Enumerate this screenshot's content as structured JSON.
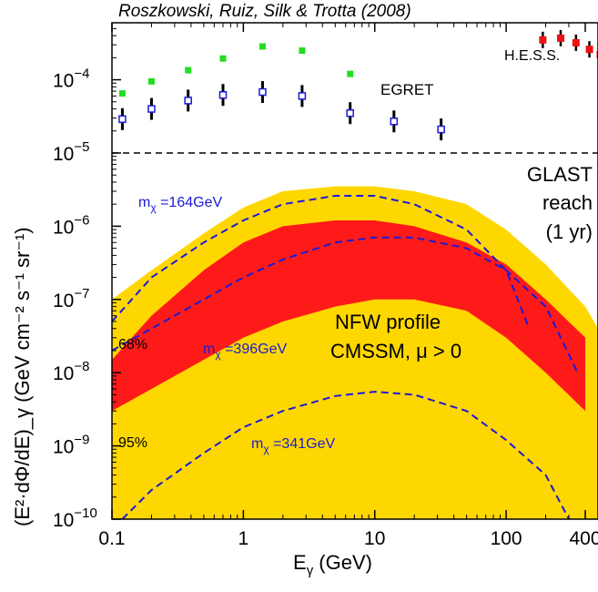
{
  "chart_data": {
    "type": "scatter",
    "title": "Roszkowski, Ruiz, Silk & Trotta (2008)",
    "xlabel": "E_γ (GeV)",
    "xlabel_main": "E",
    "xlabel_sub": "γ",
    "xlabel_rest": " (GeV)",
    "ylabel": "(E²·dΦ/dE)_γ (GeV cm⁻² s⁻¹ sr⁻¹)",
    "x_scale": "log",
    "y_scale": "log",
    "xlim": [
      0.1,
      500
    ],
    "ylim": [
      1e-10,
      0.0006
    ],
    "x_ticks": [
      {
        "value": 0.1,
        "label": "0.1"
      },
      {
        "value": 1,
        "label": "1"
      },
      {
        "value": 10,
        "label": "10"
      },
      {
        "value": 100,
        "label": "100"
      },
      {
        "value": 400,
        "label": "400"
      }
    ],
    "y_ticks": [
      {
        "value": 1e-10,
        "exp": "−10"
      },
      {
        "value": 1e-09,
        "exp": "−9"
      },
      {
        "value": 1e-08,
        "exp": "−8"
      },
      {
        "value": 1e-07,
        "exp": "−7"
      },
      {
        "value": 1e-06,
        "exp": "−6"
      },
      {
        "value": 1e-05,
        "exp": "−5"
      },
      {
        "value": 0.0001,
        "exp": "−4"
      }
    ],
    "y_tick_base": "10",
    "glast_reach": 1e-05,
    "series": [
      {
        "name": "EGRET",
        "marker": "green-square",
        "color": "#22dd22",
        "x": [
          0.12,
          0.2,
          0.38,
          0.7,
          1.4,
          2.8,
          6.5
        ],
        "y": [
          6.5e-05,
          9.5e-05,
          0.000135,
          0.000195,
          0.000285,
          0.00025,
          0.00012
        ]
      },
      {
        "marker": "blue-open-square",
        "color": "#1a1ad6",
        "x": [
          0.12,
          0.2,
          0.38,
          0.7,
          1.4,
          2.8,
          6.5,
          14,
          32
        ],
        "y": [
          2.9e-05,
          4e-05,
          5.2e-05,
          6.2e-05,
          6.8e-05,
          6e-05,
          3.5e-05,
          2.7e-05,
          2.1e-05
        ]
      },
      {
        "name": "H.E.S.S.",
        "marker": "red-square",
        "color": "#ee1111",
        "x": [
          190,
          260,
          340,
          430,
          520
        ],
        "y": [
          0.00035,
          0.00037,
          0.00032,
          0.00026,
          0.00022
        ]
      }
    ],
    "bands": [
      {
        "label": "95%",
        "color": "#ffd700",
        "x": [
          0.1,
          0.2,
          0.5,
          1,
          2,
          5,
          10,
          20,
          50,
          100,
          200,
          400,
          500
        ],
        "y_low": [
          1e-10,
          1e-10,
          1e-10,
          1e-10,
          1e-10,
          1e-10,
          1e-10,
          1e-10,
          1e-10,
          1e-10,
          1e-10,
          1e-10,
          1e-10
        ],
        "y_high": [
          1e-07,
          2.5e-07,
          8e-07,
          1.8e-06,
          3e-06,
          3.5e-06,
          3.5e-06,
          3e-06,
          2e-06,
          9e-07,
          3e-07,
          8e-08,
          4e-08
        ]
      },
      {
        "label": "68%",
        "color": "#ff1a1a",
        "x": [
          0.1,
          0.2,
          0.5,
          1,
          2,
          5,
          10,
          20,
          50,
          100,
          200,
          400
        ],
        "y_low": [
          3e-09,
          6e-09,
          1.5e-08,
          3e-08,
          5e-08,
          8e-08,
          1e-07,
          1e-07,
          7e-08,
          3e-08,
          1e-08,
          3e-09
        ],
        "y_high": [
          1.5e-08,
          6e-08,
          2.5e-07,
          6e-07,
          1e-06,
          1.2e-06,
          1.2e-06,
          1e-06,
          6e-07,
          3e-07,
          1e-07,
          3e-08
        ]
      }
    ],
    "curves": [
      {
        "label": "m_χ =164GeV",
        "label_main": "m",
        "label_sub": "χ",
        "label_rest": " =164GeV",
        "x": [
          0.1,
          0.2,
          0.5,
          1,
          2,
          5,
          10,
          20,
          50,
          100,
          150
        ],
        "y": [
          5e-08,
          2e-07,
          6e-07,
          1.2e-06,
          2e-06,
          2.6e-06,
          2.6e-06,
          2e-06,
          9e-07,
          2.5e-07,
          4e-08
        ]
      },
      {
        "label": "m_χ =396GeV",
        "label_main": "m",
        "label_sub": "χ",
        "label_rest": " =396GeV",
        "x": [
          0.1,
          0.2,
          0.5,
          1,
          2,
          5,
          10,
          20,
          50,
          100,
          200,
          350
        ],
        "y": [
          2e-08,
          4e-08,
          1e-07,
          2e-07,
          3.5e-07,
          6e-07,
          7e-07,
          7e-07,
          5e-07,
          2.5e-07,
          8e-08,
          1e-08
        ]
      },
      {
        "label": "m_χ =341GeV",
        "label_main": "m",
        "label_sub": "χ",
        "label_rest": " =341GeV",
        "x": [
          0.12,
          0.2,
          0.5,
          1,
          2,
          5,
          10,
          20,
          50,
          100,
          200,
          300
        ],
        "y": [
          1e-10,
          2.5e-10,
          8e-10,
          1.8e-09,
          3e-09,
          4.8e-09,
          5.5e-09,
          5e-09,
          3e-09,
          1.2e-09,
          4e-10,
          1e-10
        ]
      }
    ],
    "annotations": {
      "egret": "EGRET",
      "hess": "H.E.S.S.",
      "glast_1": "GLAST",
      "glast_2": "reach",
      "glast_3": "(1 yr)",
      "nfw_1": "NFW profile",
      "nfw_2": "CMSSM, μ > 0",
      "cl68": "68%",
      "cl95": "95%"
    }
  }
}
